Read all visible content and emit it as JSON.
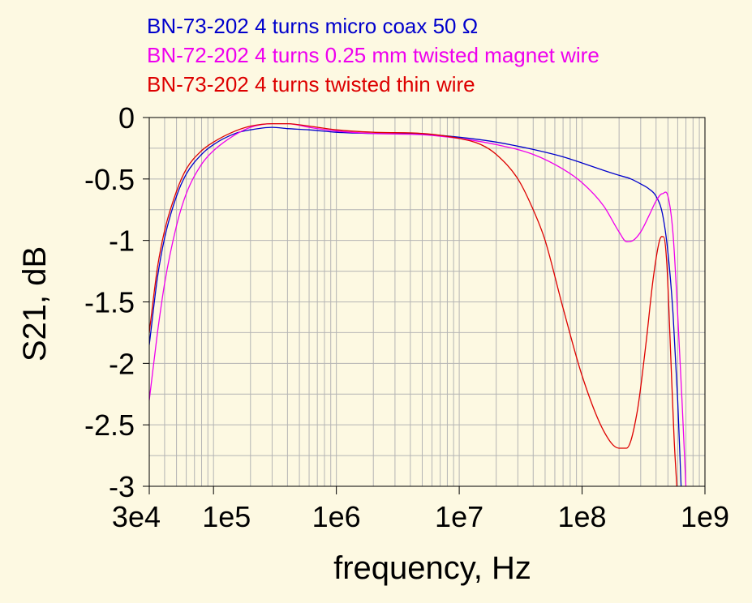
{
  "chart_data": {
    "type": "line",
    "xlabel": "frequency, Hz",
    "ylabel": "S21, dB",
    "xscale": "log",
    "xlim": [
      30000,
      1000000000
    ],
    "ylim": [
      -3,
      0
    ],
    "grid": true,
    "legend_position": "top-left",
    "x_ticks": [
      {
        "value": 30000,
        "label": "3e4"
      },
      {
        "value": 100000,
        "label": "1e5"
      },
      {
        "value": 1000000,
        "label": "1e6"
      },
      {
        "value": 10000000,
        "label": "1e7"
      },
      {
        "value": 100000000,
        "label": "1e8"
      },
      {
        "value": 1000000000,
        "label": "1e9"
      }
    ],
    "y_ticks": [
      {
        "value": 0,
        "label": "0"
      },
      {
        "value": -0.5,
        "label": "-0.5"
      },
      {
        "value": -1,
        "label": "-1"
      },
      {
        "value": -1.5,
        "label": "-1.5"
      },
      {
        "value": -2,
        "label": "-2"
      },
      {
        "value": -2.5,
        "label": "-2.5"
      },
      {
        "value": -3,
        "label": "-3"
      }
    ],
    "series": [
      {
        "name": "BN-73-202 4 turns micro coax 50 Ω",
        "color": "#0000cc",
        "points": [
          [
            30000,
            -1.85
          ],
          [
            35000,
            -1.3
          ],
          [
            40000,
            -0.98
          ],
          [
            50000,
            -0.64
          ],
          [
            60000,
            -0.46
          ],
          [
            80000,
            -0.3
          ],
          [
            100000,
            -0.22
          ],
          [
            150000,
            -0.13
          ],
          [
            200000,
            -0.1
          ],
          [
            300000,
            -0.08
          ],
          [
            400000,
            -0.09
          ],
          [
            600000,
            -0.1
          ],
          [
            1000000,
            -0.12
          ],
          [
            2000000,
            -0.13
          ],
          [
            5000000,
            -0.135
          ],
          [
            10000000,
            -0.16
          ],
          [
            20000000,
            -0.2
          ],
          [
            40000000,
            -0.26
          ],
          [
            70000000,
            -0.32
          ],
          [
            100000000,
            -0.37
          ],
          [
            150000000,
            -0.43
          ],
          [
            200000000,
            -0.47
          ],
          [
            250000000,
            -0.5
          ],
          [
            300000000,
            -0.54
          ],
          [
            350000000,
            -0.58
          ],
          [
            400000000,
            -0.64
          ],
          [
            450000000,
            -0.78
          ],
          [
            500000000,
            -1.1
          ],
          [
            550000000,
            -1.6
          ],
          [
            600000000,
            -2.3
          ],
          [
            640000000,
            -3.0
          ]
        ]
      },
      {
        "name": "BN-72-202 4 turns 0.25 mm twisted magnet wire",
        "color": "#ee00ee",
        "points": [
          [
            30000,
            -2.3
          ],
          [
            35000,
            -1.75
          ],
          [
            40000,
            -1.35
          ],
          [
            50000,
            -0.88
          ],
          [
            60000,
            -0.62
          ],
          [
            80000,
            -0.38
          ],
          [
            100000,
            -0.27
          ],
          [
            150000,
            -0.14
          ],
          [
            200000,
            -0.08
          ],
          [
            300000,
            -0.05
          ],
          [
            400000,
            -0.05
          ],
          [
            600000,
            -0.08
          ],
          [
            1000000,
            -0.11
          ],
          [
            2000000,
            -0.13
          ],
          [
            5000000,
            -0.14
          ],
          [
            10000000,
            -0.17
          ],
          [
            20000000,
            -0.22
          ],
          [
            40000000,
            -0.3
          ],
          [
            70000000,
            -0.42
          ],
          [
            100000000,
            -0.53
          ],
          [
            150000000,
            -0.72
          ],
          [
            200000000,
            -0.93
          ],
          [
            230000000,
            -1.01
          ],
          [
            260000000,
            -1.0
          ],
          [
            300000000,
            -0.93
          ],
          [
            350000000,
            -0.8
          ],
          [
            400000000,
            -0.68
          ],
          [
            450000000,
            -0.62
          ],
          [
            500000000,
            -0.64
          ],
          [
            550000000,
            -0.95
          ],
          [
            600000000,
            -1.6
          ],
          [
            650000000,
            -2.3
          ],
          [
            700000000,
            -3.0
          ]
        ]
      },
      {
        "name": "BN-73-202 4 turns twisted thin wire",
        "color": "#dd0000",
        "points": [
          [
            30000,
            -1.75
          ],
          [
            35000,
            -1.22
          ],
          [
            40000,
            -0.92
          ],
          [
            50000,
            -0.6
          ],
          [
            60000,
            -0.42
          ],
          [
            80000,
            -0.27
          ],
          [
            100000,
            -0.2
          ],
          [
            150000,
            -0.11
          ],
          [
            200000,
            -0.07
          ],
          [
            300000,
            -0.05
          ],
          [
            400000,
            -0.05
          ],
          [
            600000,
            -0.07
          ],
          [
            1000000,
            -0.1
          ],
          [
            2000000,
            -0.12
          ],
          [
            5000000,
            -0.13
          ],
          [
            10000000,
            -0.17
          ],
          [
            15000000,
            -0.22
          ],
          [
            20000000,
            -0.3
          ],
          [
            30000000,
            -0.5
          ],
          [
            40000000,
            -0.75
          ],
          [
            50000000,
            -1.0
          ],
          [
            70000000,
            -1.55
          ],
          [
            100000000,
            -2.1
          ],
          [
            150000000,
            -2.55
          ],
          [
            200000000,
            -2.69
          ],
          [
            230000000,
            -2.69
          ],
          [
            280000000,
            -2.4
          ],
          [
            330000000,
            -1.85
          ],
          [
            380000000,
            -1.3
          ],
          [
            430000000,
            -0.99
          ],
          [
            460000000,
            -0.97
          ],
          [
            490000000,
            -1.2
          ],
          [
            520000000,
            -1.8
          ],
          [
            560000000,
            -2.6
          ],
          [
            590000000,
            -3.0
          ]
        ]
      }
    ]
  }
}
